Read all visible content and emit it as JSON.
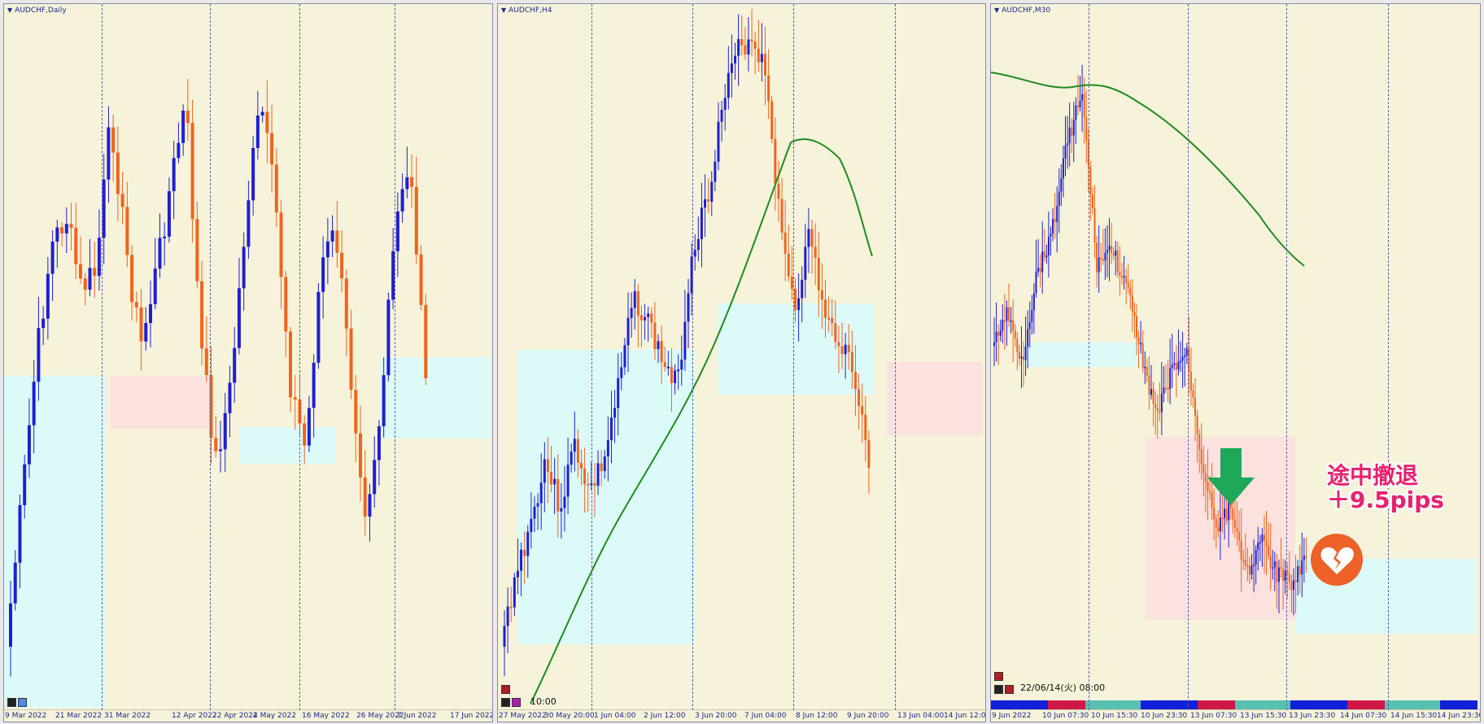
{
  "charts": [
    {
      "title": "AUDCHF,Daily",
      "ticks": [
        "9 Mar 2022",
        "21 Mar 2022",
        "31 Mar 2022",
        "12 Apr 2022",
        "22 Apr 2022",
        "4 May 2022",
        "16 May 2022",
        "26 May 2022",
        "7 Jun 2022",
        "17 Jun 2022"
      ]
    },
    {
      "title": "AUDCHF,H4",
      "ticks": [
        "27 May 2022",
        "30 May 20:00",
        "1 Jun 04:00",
        "2 Jun 12:00",
        "3 Jun 20:00",
        "7 Jun 04:00",
        "8 Jun 12:00",
        "9 Jun 20:00",
        "13 Jun 04:00",
        "14 Jun 12:00"
      ],
      "cursor_label": "10:00"
    },
    {
      "title": "AUDCHF,M30",
      "ticks": [
        "9 Jun 2022",
        "10 Jun 07:30",
        "10 Jun 15:30",
        "10 Jun 23:30",
        "13 Jun 07:30",
        "13 Jun 15:30",
        "13 Jun 23:30",
        "14 Jun 07:30",
        "14 Jun 15:30",
        "14 Jun 23:30"
      ],
      "cursor_label": "22/06/14(火) 08:00"
    }
  ],
  "annotation": {
    "line1": "途中撤退",
    "line2": "＋9.5pips"
  },
  "colors": {
    "bull": "#1f1fd0",
    "bear": "#f0641e",
    "ma": "#1e8c1e",
    "support_zone": "#dcfbf8",
    "resistance_zone": "#fbe2df",
    "background": "#f6f3da"
  },
  "icons": {
    "sell_arrow": "down-arrow-icon",
    "result": "broken-heart-icon"
  }
}
